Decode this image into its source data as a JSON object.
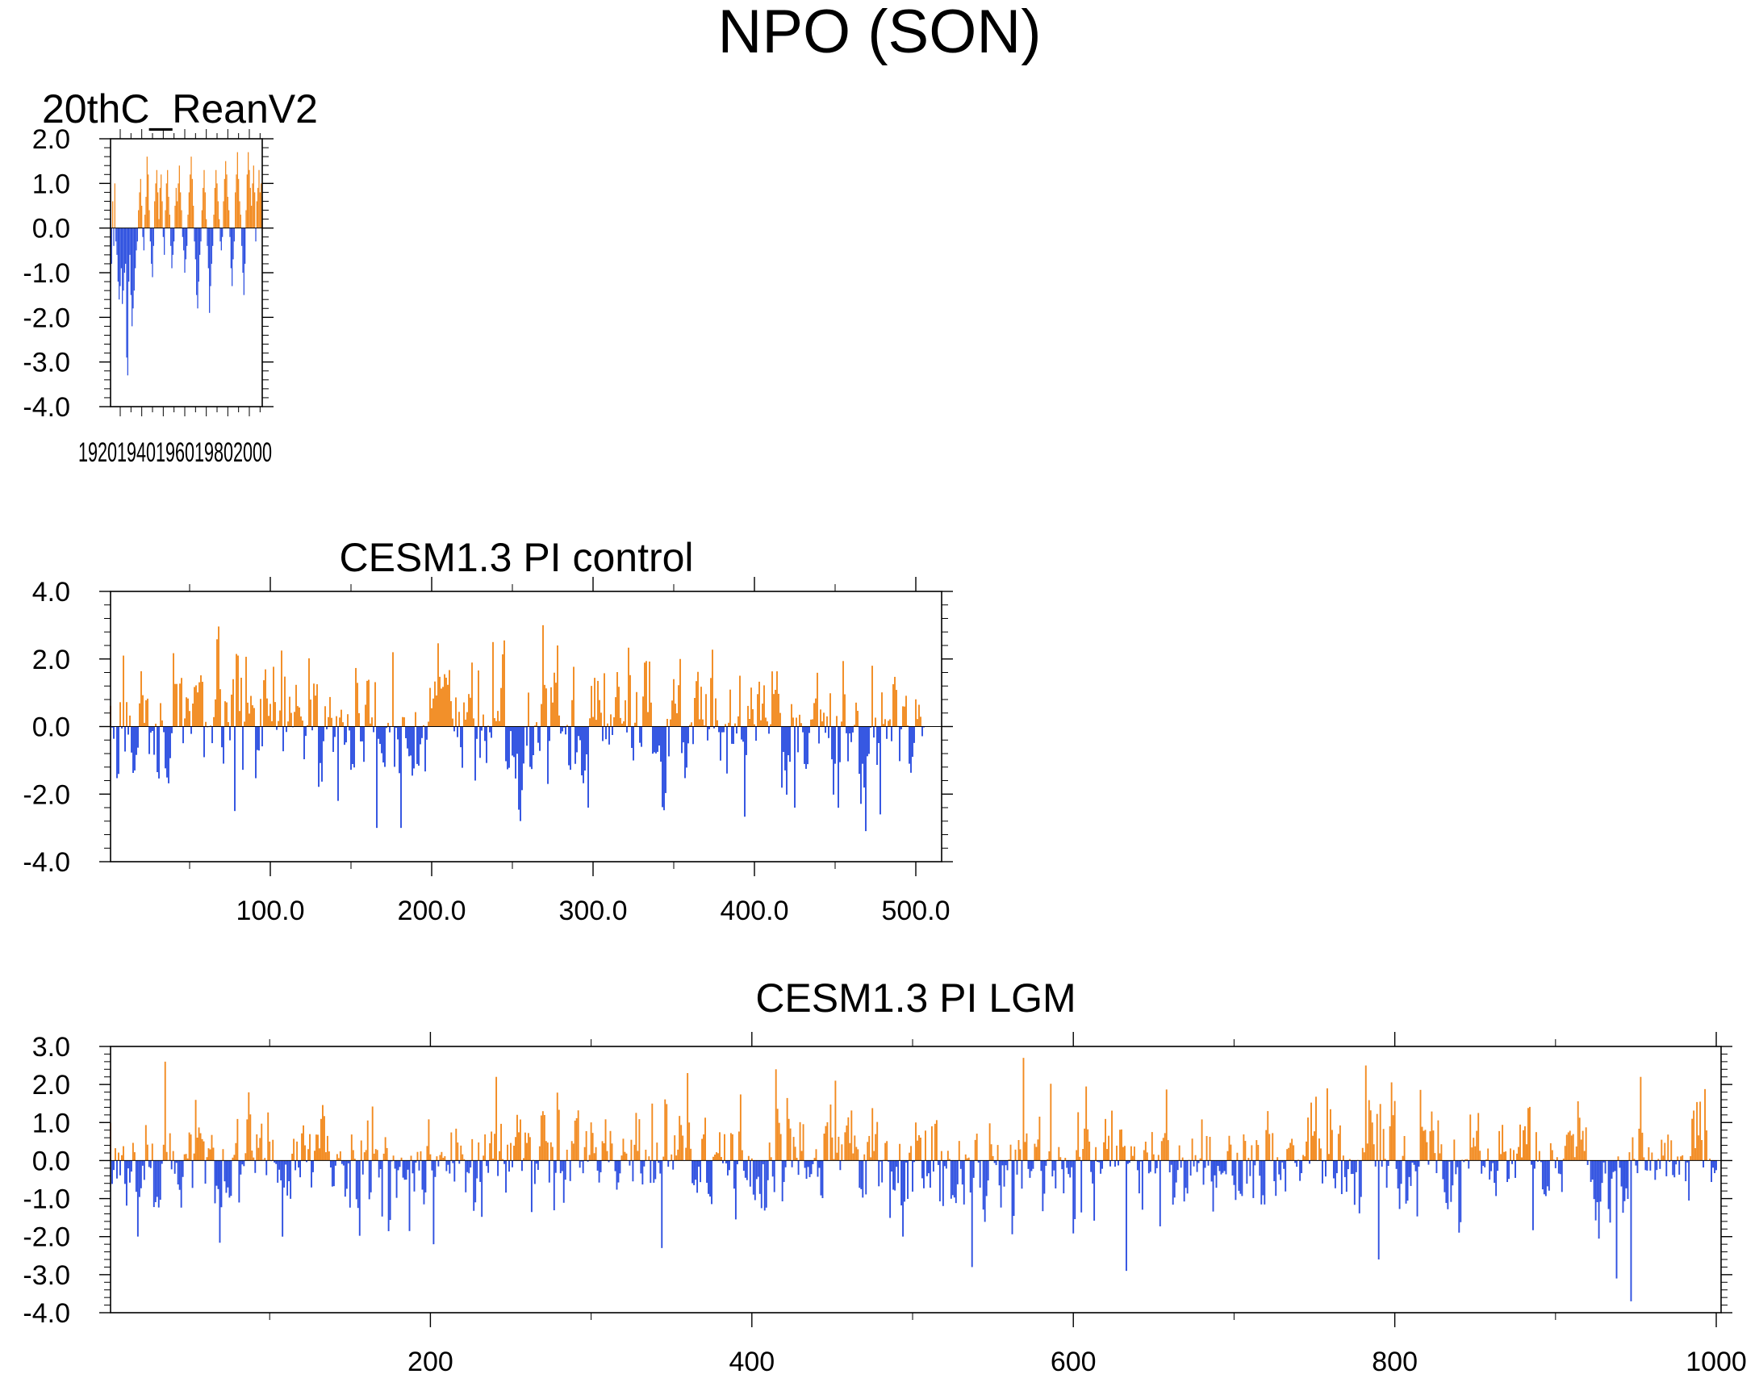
{
  "figure": {
    "title": "NPO (SON)"
  },
  "colors": {
    "positive": "#f28a1f",
    "negative": "#2d4fe0",
    "axis": "#000000"
  },
  "chart_data": [
    {
      "type": "bar",
      "title": "20thC_ReanV2",
      "xlabel": "",
      "ylabel": "",
      "xlim": [
        1871,
        2012
      ],
      "ylim": [
        -4.0,
        2.0
      ],
      "yticks": [
        -4.0,
        -3.0,
        -2.0,
        -1.0,
        0.0,
        1.0,
        2.0
      ],
      "ytick_labels": [
        "-4.0",
        "-3.0",
        "-2.0",
        "-1.0",
        "0.0",
        "1.0",
        "2.0"
      ],
      "xtick_labels_text": "19201940196019802000",
      "grid": false,
      "positive_color": "#f28a1f",
      "negative_color": "#2d4fe0",
      "x_start": 1871,
      "values": [
        0.9,
        -0.8,
        0.6,
        -0.4,
        1.0,
        -0.3,
        -0.6,
        -1.2,
        -1.6,
        -1.3,
        -0.9,
        -1.7,
        -1.4,
        -1.0,
        -0.8,
        -2.9,
        -3.3,
        -1.2,
        -0.6,
        -1.5,
        -2.2,
        -1.8,
        -1.4,
        -0.9,
        -0.5,
        -0.3,
        0.4,
        0.8,
        1.1,
        0.5,
        -0.2,
        -0.5,
        0.3,
        0.7,
        1.6,
        1.2,
        0.4,
        -0.3,
        -0.8,
        -1.1,
        -0.4,
        0.6,
        1.0,
        1.3,
        0.8,
        0.2,
        0.9,
        1.2,
        0.6,
        -0.2,
        -0.6,
        0.4,
        1.0,
        1.3,
        0.7,
        0.3,
        -0.4,
        -0.9,
        -0.6,
        -0.3,
        0.5,
        0.9,
        0.6,
        1.0,
        1.4,
        0.8,
        0.4,
        -0.2,
        -0.5,
        -1.0,
        -0.7,
        -0.4,
        0.3,
        0.8,
        1.2,
        1.6,
        1.1,
        0.5,
        -0.3,
        -0.7,
        -1.5,
        -1.8,
        -1.2,
        -0.6,
        -0.3,
        0.4,
        0.9,
        1.3,
        0.8,
        0.2,
        -0.4,
        -0.9,
        -1.9,
        -1.3,
        -0.8,
        -0.4,
        0.3,
        0.9,
        1.3,
        1.0,
        0.6,
        0.2,
        -0.3,
        -0.5,
        -0.2,
        0.6,
        1.1,
        1.5,
        1.2,
        0.7,
        0.4,
        -0.2,
        -0.9,
        -1.3,
        -0.7,
        -0.3,
        0.8,
        1.2,
        1.7,
        1.1,
        0.6,
        0.3,
        -0.4,
        -1.0,
        -1.5,
        -0.8,
        0.4,
        1.2,
        1.7,
        1.3,
        0.9,
        0.5,
        1.0,
        1.4,
        0.8,
        -0.3,
        0.6,
        0.9,
        1.3,
        0.8,
        1.0,
        0.7
      ]
    },
    {
      "type": "bar",
      "title": "CESM1.3 PI control",
      "xlabel": "",
      "ylabel": "",
      "xlim": [
        1,
        516
      ],
      "ylim": [
        -4.0,
        4.0
      ],
      "yticks": [
        -4.0,
        -2.0,
        0.0,
        2.0,
        4.0
      ],
      "ytick_labels": [
        "-4.0",
        "-2.0",
        "0.0",
        "2.0",
        "4.0"
      ],
      "xticks": [
        100,
        200,
        300,
        400,
        500
      ],
      "xtick_labels": [
        "100.0",
        "200.0",
        "300.0",
        "400.0",
        "500.0"
      ],
      "grid": false,
      "positive_color": "#f28a1f",
      "negative_color": "#2d4fe0",
      "n": 505,
      "seed": 17,
      "amplitude": 0.85,
      "lag": 0.45,
      "events": [
        [
          8,
          2.1
        ],
        [
          77,
          -2.5
        ],
        [
          141,
          -2.2
        ],
        [
          165,
          -3.0
        ],
        [
          175,
          2.2
        ],
        [
          180,
          -3.0
        ],
        [
          237,
          2.5
        ],
        [
          268,
          3.0
        ],
        [
          277,
          2.4
        ],
        [
          296,
          -2.4
        ],
        [
          353,
          2.0
        ],
        [
          424,
          -2.4
        ],
        [
          477,
          -2.6
        ],
        [
          472,
          1.8
        ]
      ]
    },
    {
      "type": "bar",
      "title": "CESM1.3 PI LGM",
      "xlabel": "",
      "ylabel": "",
      "xlim": [
        1,
        1003
      ],
      "ylim": [
        -4.0,
        3.0
      ],
      "yticks": [
        -4.0,
        -3.0,
        -2.0,
        -1.0,
        0.0,
        1.0,
        2.0,
        3.0
      ],
      "ytick_labels": [
        "-4.0",
        "-3.0",
        "-2.0",
        "-1.0",
        "0.0",
        "1.0",
        "2.0",
        "3.0"
      ],
      "xticks": [
        200,
        400,
        600,
        800,
        1000
      ],
      "xtick_labels": [
        "200",
        "400",
        "600",
        "800",
        "1000"
      ],
      "grid": false,
      "positive_color": "#f28a1f",
      "negative_color": "#2d4fe0",
      "n": 1000,
      "seed": 53,
      "amplitude": 0.7,
      "lag": 0.4,
      "events": [
        [
          34,
          2.6
        ],
        [
          107,
          -2.0
        ],
        [
          201,
          -2.2
        ],
        [
          240,
          2.2
        ],
        [
          343,
          -2.3
        ],
        [
          359,
          2.3
        ],
        [
          414,
          2.4
        ],
        [
          451,
          2.1
        ],
        [
          536,
          -2.8
        ],
        [
          568,
          2.7
        ],
        [
          632,
          -2.9
        ],
        [
          757,
          1.9
        ],
        [
          781,
          2.5
        ],
        [
          789,
          -2.6
        ],
        [
          937,
          -3.1
        ],
        [
          946,
          -3.7
        ],
        [
          952,
          2.2
        ]
      ]
    }
  ]
}
